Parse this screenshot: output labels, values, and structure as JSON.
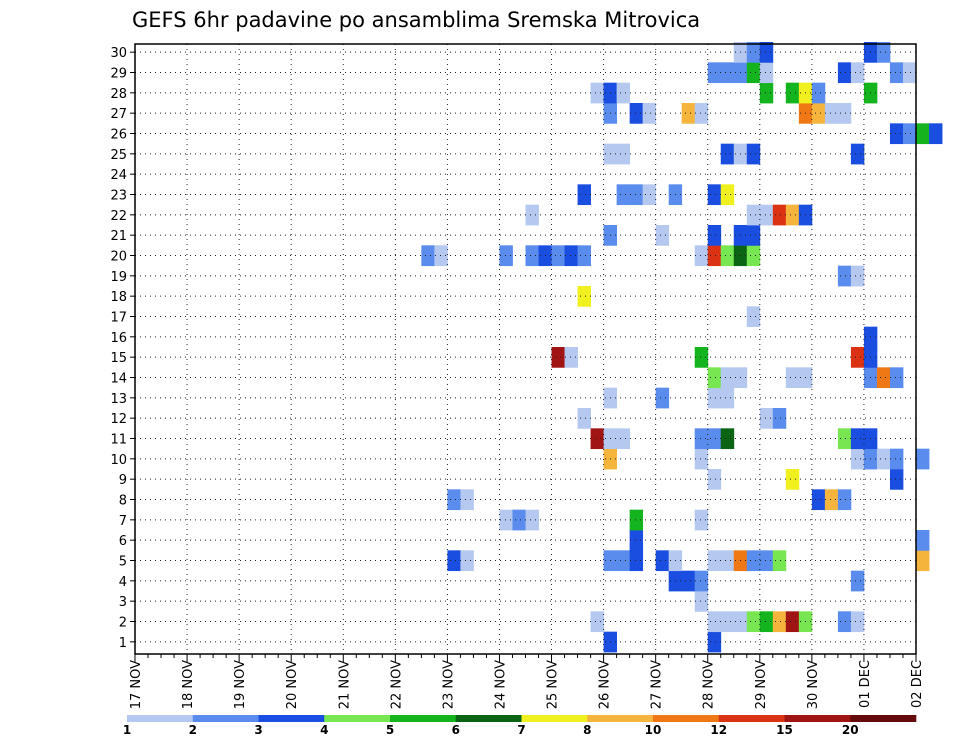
{
  "chart_data": {
    "type": "heatmap",
    "title": "GEFS 6hr padavine po ansamblima Sremska Mitrovica",
    "x_tick_labels": [
      "17 NOV",
      "18 NOV",
      "19 NOV",
      "20 NOV",
      "21 NOV",
      "22 NOV",
      "23 NOV",
      "24 NOV",
      "25 NOV",
      "26 NOV",
      "27 NOV",
      "28 NOV",
      "29 NOV",
      "30 NOV",
      "01 DEC",
      "02 DEC"
    ],
    "y_tick_labels": [
      "1",
      "2",
      "3",
      "4",
      "5",
      "6",
      "7",
      "8",
      "9",
      "10",
      "11",
      "12",
      "13",
      "14",
      "15",
      "16",
      "17",
      "18",
      "19",
      "20",
      "21",
      "22",
      "23",
      "24",
      "25",
      "26",
      "27",
      "28",
      "29",
      "30"
    ],
    "y_range": [
      1,
      30
    ],
    "time_step_hours": 6,
    "grid": "dotted",
    "legend_position": "bottom",
    "legend": {
      "labels": [
        "1",
        "2",
        "3",
        "4",
        "5",
        "6",
        "7",
        "8",
        "10",
        "12",
        "15",
        "20"
      ],
      "colors": [
        "#b4c8f0",
        "#5a8cee",
        "#1a4ee0",
        "#78e650",
        "#14b41e",
        "#0a6414",
        "#f0f01e",
        "#f5b43c",
        "#f07814",
        "#dc3214",
        "#a01414",
        "#640a0a"
      ]
    },
    "category_colors": [
      "#b4c8f0",
      "#5a8cee",
      "#1a4ee0",
      "#78e650",
      "#14b41e",
      "#0a6414",
      "#f0f01e",
      "#f5b43c",
      "#f07814",
      "#dc3214",
      "#a01414",
      "#640a0a"
    ],
    "cells_note": "each entry: [day_index (0 = 17 NOV), six_hour_slot (0-3), member, category_index]",
    "cells": [
      [
        11,
        0,
        1,
        2
      ],
      [
        9,
        0,
        1,
        2
      ],
      [
        8,
        3,
        2,
        0
      ],
      [
        11,
        0,
        2,
        0
      ],
      [
        11,
        1,
        2,
        0
      ],
      [
        11,
        2,
        2,
        0
      ],
      [
        11,
        3,
        2,
        3
      ],
      [
        12,
        0,
        2,
        4
      ],
      [
        12,
        1,
        2,
        7
      ],
      [
        12,
        2,
        2,
        10
      ],
      [
        12,
        3,
        2,
        3
      ],
      [
        13,
        2,
        2,
        1
      ],
      [
        13,
        3,
        2,
        0
      ],
      [
        10,
        3,
        3,
        0
      ],
      [
        10,
        1,
        4,
        2
      ],
      [
        10,
        2,
        4,
        2
      ],
      [
        10,
        3,
        4,
        1
      ],
      [
        13,
        3,
        4,
        1
      ],
      [
        6,
        0,
        5,
        2
      ],
      [
        6,
        1,
        5,
        0
      ],
      [
        9,
        0,
        5,
        1
      ],
      [
        9,
        1,
        5,
        1
      ],
      [
        9,
        2,
        5,
        2
      ],
      [
        10,
        0,
        5,
        2
      ],
      [
        10,
        1,
        5,
        0
      ],
      [
        11,
        0,
        5,
        0
      ],
      [
        11,
        1,
        5,
        0
      ],
      [
        11,
        2,
        5,
        8
      ],
      [
        11,
        3,
        5,
        1
      ],
      [
        12,
        0,
        5,
        1
      ],
      [
        12,
        1,
        5,
        3
      ],
      [
        15,
        0,
        5,
        7
      ],
      [
        9,
        2,
        6,
        2
      ],
      [
        15,
        0,
        6,
        1
      ],
      [
        7,
        0,
        7,
        0
      ],
      [
        7,
        1,
        7,
        1
      ],
      [
        7,
        2,
        7,
        0
      ],
      [
        9,
        2,
        7,
        4
      ],
      [
        10,
        3,
        7,
        0
      ],
      [
        6,
        0,
        8,
        1
      ],
      [
        6,
        1,
        8,
        0
      ],
      [
        13,
        0,
        8,
        2
      ],
      [
        13,
        1,
        8,
        7
      ],
      [
        13,
        2,
        8,
        1
      ],
      [
        11,
        0,
        9,
        0
      ],
      [
        12,
        2,
        9,
        6
      ],
      [
        14,
        2,
        9,
        2
      ],
      [
        9,
        0,
        10,
        7
      ],
      [
        10,
        3,
        10,
        0
      ],
      [
        13,
        3,
        10,
        0
      ],
      [
        14,
        0,
        10,
        1
      ],
      [
        14,
        1,
        10,
        0
      ],
      [
        14,
        2,
        10,
        1
      ],
      [
        15,
        0,
        10,
        1
      ],
      [
        8,
        3,
        11,
        10
      ],
      [
        9,
        0,
        11,
        0
      ],
      [
        9,
        1,
        11,
        0
      ],
      [
        10,
        3,
        11,
        1
      ],
      [
        11,
        0,
        11,
        1
      ],
      [
        11,
        1,
        11,
        5
      ],
      [
        13,
        2,
        11,
        3
      ],
      [
        13,
        3,
        11,
        2
      ],
      [
        14,
        0,
        11,
        2
      ],
      [
        8,
        2,
        12,
        0
      ],
      [
        12,
        0,
        12,
        0
      ],
      [
        12,
        1,
        12,
        1
      ],
      [
        9,
        0,
        13,
        0
      ],
      [
        10,
        0,
        13,
        1
      ],
      [
        11,
        0,
        13,
        0
      ],
      [
        11,
        1,
        13,
        0
      ],
      [
        11,
        0,
        14,
        3
      ],
      [
        11,
        1,
        14,
        0
      ],
      [
        11,
        2,
        14,
        0
      ],
      [
        12,
        2,
        14,
        0
      ],
      [
        12,
        3,
        14,
        0
      ],
      [
        14,
        0,
        14,
        1
      ],
      [
        14,
        1,
        14,
        8
      ],
      [
        14,
        2,
        14,
        1
      ],
      [
        8,
        0,
        15,
        10
      ],
      [
        8,
        1,
        15,
        0
      ],
      [
        10,
        3,
        15,
        4
      ],
      [
        13,
        3,
        15,
        9
      ],
      [
        14,
        0,
        15,
        2
      ],
      [
        14,
        0,
        16,
        2
      ],
      [
        11,
        3,
        17,
        0
      ],
      [
        8,
        2,
        18,
        6
      ],
      [
        13,
        2,
        19,
        1
      ],
      [
        13,
        3,
        19,
        0
      ],
      [
        5,
        2,
        20,
        1
      ],
      [
        5,
        3,
        20,
        0
      ],
      [
        7,
        0,
        20,
        1
      ],
      [
        7,
        2,
        20,
        1
      ],
      [
        7,
        3,
        20,
        2
      ],
      [
        8,
        0,
        20,
        1
      ],
      [
        8,
        1,
        20,
        2
      ],
      [
        8,
        2,
        20,
        1
      ],
      [
        10,
        3,
        20,
        0
      ],
      [
        11,
        0,
        20,
        9
      ],
      [
        11,
        1,
        20,
        3
      ],
      [
        11,
        2,
        20,
        5
      ],
      [
        11,
        3,
        20,
        3
      ],
      [
        9,
        0,
        21,
        1
      ],
      [
        10,
        0,
        21,
        0
      ],
      [
        11,
        0,
        21,
        2
      ],
      [
        11,
        2,
        21,
        2
      ],
      [
        11,
        3,
        21,
        2
      ],
      [
        7,
        2,
        22,
        0
      ],
      [
        11,
        3,
        22,
        0
      ],
      [
        12,
        0,
        22,
        0
      ],
      [
        12,
        1,
        22,
        9
      ],
      [
        12,
        2,
        22,
        7
      ],
      [
        12,
        3,
        22,
        2
      ],
      [
        8,
        2,
        23,
        2
      ],
      [
        9,
        1,
        23,
        1
      ],
      [
        9,
        2,
        23,
        1
      ],
      [
        9,
        3,
        23,
        0
      ],
      [
        10,
        1,
        23,
        1
      ],
      [
        11,
        0,
        23,
        2
      ],
      [
        11,
        1,
        23,
        6
      ],
      [
        9,
        0,
        25,
        0
      ],
      [
        9,
        1,
        25,
        0
      ],
      [
        11,
        1,
        25,
        2
      ],
      [
        11,
        2,
        25,
        0
      ],
      [
        11,
        3,
        25,
        2
      ],
      [
        13,
        3,
        25,
        2
      ],
      [
        14,
        2,
        26,
        2
      ],
      [
        14,
        3,
        26,
        1
      ],
      [
        15,
        0,
        26,
        4
      ],
      [
        15,
        1,
        26,
        2
      ],
      [
        9,
        0,
        27,
        1
      ],
      [
        9,
        2,
        27,
        2
      ],
      [
        9,
        3,
        27,
        0
      ],
      [
        10,
        2,
        27,
        7
      ],
      [
        10,
        3,
        27,
        0
      ],
      [
        12,
        3,
        27,
        8
      ],
      [
        13,
        0,
        27,
        7
      ],
      [
        13,
        1,
        27,
        0
      ],
      [
        13,
        2,
        27,
        0
      ],
      [
        8,
        3,
        28,
        0
      ],
      [
        9,
        0,
        28,
        2
      ],
      [
        9,
        1,
        28,
        0
      ],
      [
        12,
        0,
        28,
        4
      ],
      [
        12,
        2,
        28,
        4
      ],
      [
        12,
        3,
        28,
        6
      ],
      [
        13,
        0,
        28,
        1
      ],
      [
        14,
        0,
        28,
        4
      ],
      [
        11,
        0,
        29,
        1
      ],
      [
        11,
        1,
        29,
        1
      ],
      [
        11,
        2,
        29,
        1
      ],
      [
        11,
        3,
        29,
        4
      ],
      [
        12,
        0,
        29,
        0
      ],
      [
        13,
        2,
        29,
        2
      ],
      [
        13,
        3,
        29,
        0
      ],
      [
        14,
        2,
        29,
        1
      ],
      [
        14,
        3,
        29,
        0
      ],
      [
        11,
        2,
        30,
        0
      ],
      [
        11,
        3,
        30,
        1
      ],
      [
        12,
        0,
        30,
        2
      ],
      [
        14,
        0,
        30,
        2
      ],
      [
        14,
        1,
        30,
        1
      ]
    ]
  }
}
